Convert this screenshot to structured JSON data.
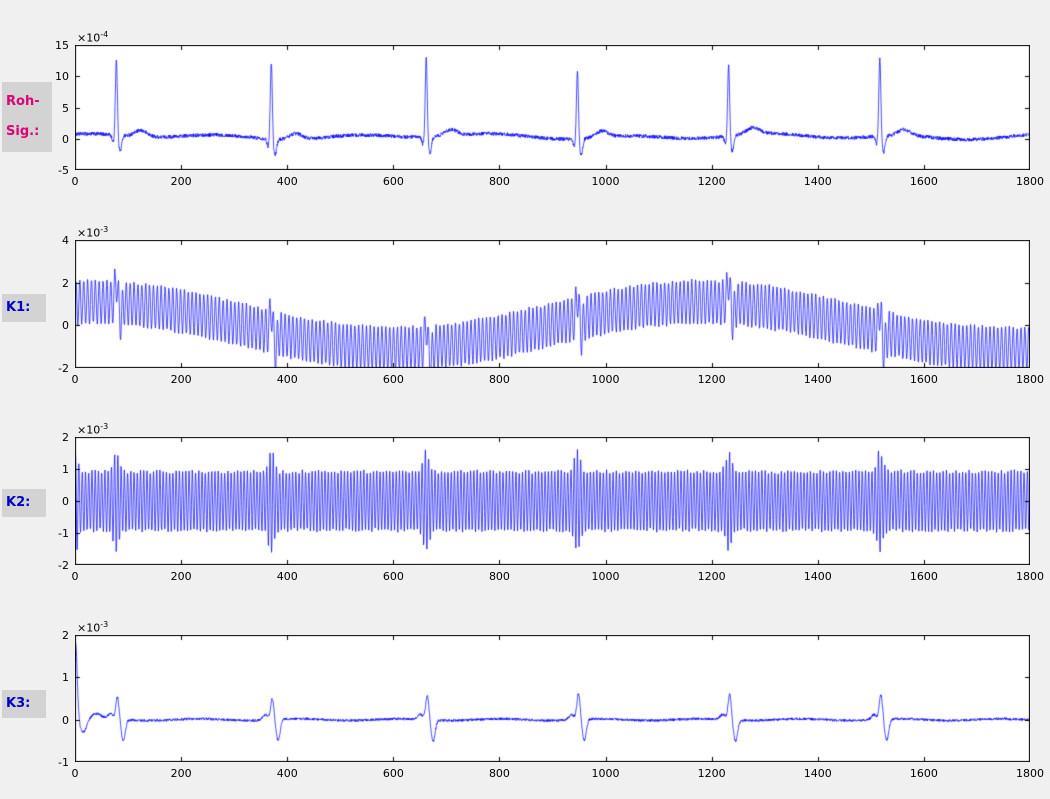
{
  "figure": {
    "background": "#f0f0f0",
    "plot_background": "#ffffff",
    "axis_color": "#000000",
    "tick_label_color": "#000000"
  },
  "row_labels": [
    {
      "name": "roh-sig",
      "lines": [
        "Roh-",
        "Sig.:"
      ],
      "color": "#dd0077",
      "background": "#d3d3d3"
    },
    {
      "name": "k1",
      "lines": [
        "K1:"
      ],
      "color": "#0000cc",
      "background": "#d3d3d3"
    },
    {
      "name": "k2",
      "lines": [
        "K2:"
      ],
      "color": "#0000cc",
      "background": "#d3d3d3"
    },
    {
      "name": "k3",
      "lines": [
        "K3:"
      ],
      "color": "#0000cc",
      "background": "#d3d3d3"
    }
  ],
  "chart_data": [
    {
      "type": "line",
      "name": "roh-sig",
      "row_label": "Roh-Sig.:",
      "scale_base": "×10",
      "scale_exp": "-4",
      "line_color": "#0000ff",
      "grid": false,
      "xlim": [
        0,
        1800
      ],
      "ylim": [
        -5,
        15
      ],
      "xticks": [
        0,
        200,
        400,
        600,
        800,
        1000,
        1200,
        1400,
        1600,
        1800
      ],
      "yticks": [
        -5,
        0,
        5,
        10,
        15
      ],
      "signal": {
        "kind": "ecg",
        "beat_positions": [
          78,
          370,
          662,
          947,
          1232,
          1517
        ],
        "r_amplitudes": [
          12.1,
          12.4,
          12.7,
          10.9,
          11.3,
          12.5
        ],
        "q_dip": -1.2,
        "s_dip": -2.6,
        "t_amp": 1.0,
        "baseline": 0.35,
        "noise_amp": 0.3
      }
    },
    {
      "type": "line",
      "name": "k1",
      "row_label": "K1:",
      "scale_base": "×10",
      "scale_exp": "-3",
      "line_color": "#0000ff",
      "grid": false,
      "xlim": [
        0,
        1800
      ],
      "ylim": [
        -2,
        4
      ],
      "xticks": [
        0,
        200,
        400,
        600,
        800,
        1000,
        1200,
        1400,
        1600,
        1800
      ],
      "yticks": [
        -2,
        0,
        2,
        4
      ],
      "signal": {
        "kind": "modulated-oscillation",
        "carrier_period": 7.3,
        "carrier_amp": 1.0,
        "mean_amp": 1.1,
        "mean_period": 1150,
        "mean_peak_x": 1180,
        "beat_positions": [
          78,
          370,
          662,
          947,
          1232,
          1517
        ],
        "spike_amp": 1.1,
        "noise_amp": 0.08
      }
    },
    {
      "type": "line",
      "name": "k2",
      "row_label": "K2:",
      "scale_base": "×10",
      "scale_exp": "-3",
      "line_color": "#0000ff",
      "grid": false,
      "xlim": [
        0,
        1800
      ],
      "ylim": [
        -2,
        2
      ],
      "xticks": [
        0,
        200,
        400,
        600,
        800,
        1000,
        1200,
        1400,
        1600,
        1800
      ],
      "yticks": [
        -2,
        -1,
        0,
        1,
        2
      ],
      "signal": {
        "kind": "oscillation-with-spikes",
        "carrier_period": 6.1,
        "carrier_amp": 0.92,
        "beat_positions": [
          78,
          370,
          662,
          947,
          1232,
          1517
        ],
        "spike_amp": 0.7,
        "initial_transient_amp": 1.0,
        "noise_amp": 0.06
      }
    },
    {
      "type": "line",
      "name": "k3",
      "row_label": "K3:",
      "scale_base": "×10",
      "scale_exp": "-3",
      "line_color": "#0000ff",
      "grid": false,
      "xlim": [
        0,
        1800
      ],
      "ylim": [
        -1,
        2
      ],
      "xticks": [
        0,
        200,
        400,
        600,
        800,
        1000,
        1200,
        1400,
        1600,
        1800
      ],
      "yticks": [
        -1,
        0,
        1,
        2
      ],
      "signal": {
        "kind": "impulse-train",
        "beat_positions": [
          80,
          372,
          664,
          949,
          1234,
          1519
        ],
        "spike_amps": [
          0.52,
          0.5,
          0.58,
          0.62,
          0.6,
          0.58
        ],
        "undershoot": -0.5,
        "initial_transient_amp": 1.85,
        "noise_amp": 0.03
      }
    }
  ]
}
